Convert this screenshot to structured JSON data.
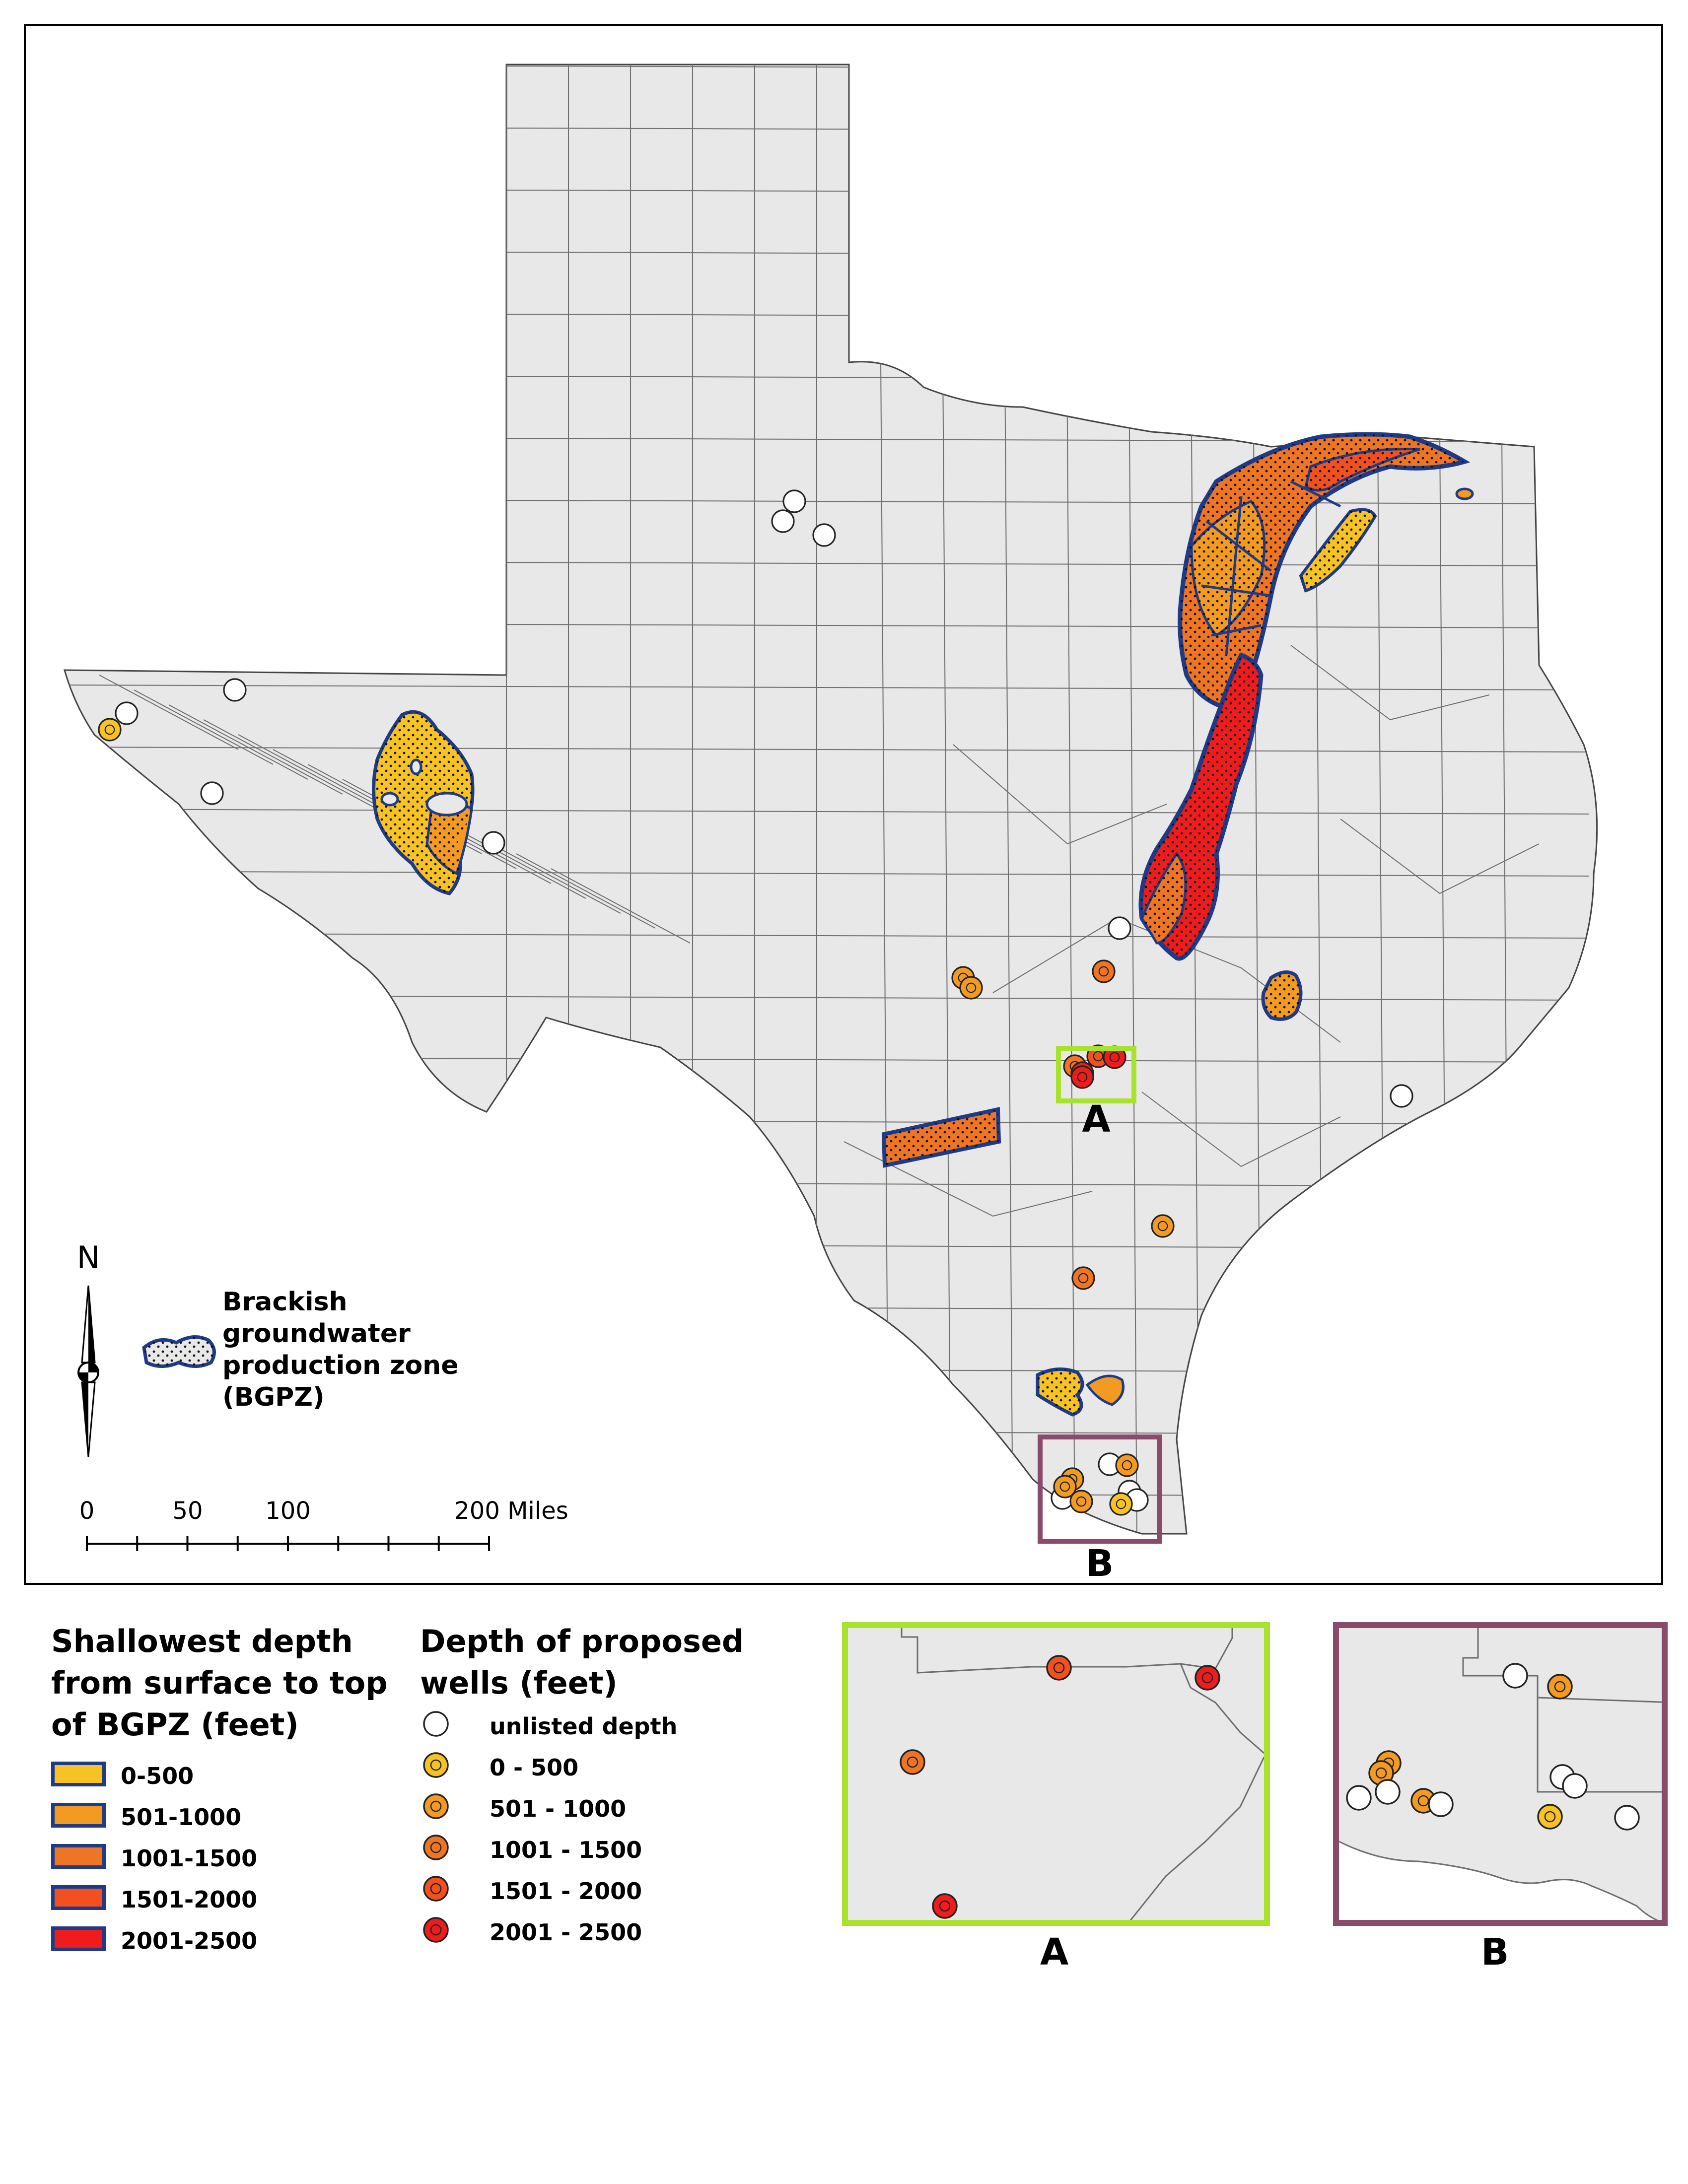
{
  "north_arrow": {
    "label": "N"
  },
  "zone_legend": {
    "label": "Brackish groundwater production zone (BGPZ)"
  },
  "scale_bar": {
    "labels": [
      "0",
      "50",
      "100",
      "200 Miles"
    ]
  },
  "callouts": {
    "a": "A",
    "b": "B"
  },
  "depth_legend": {
    "title": "Shallowest depth from surface to top of BGPZ (feet)",
    "items": [
      {
        "label": "0-500",
        "color": "#f6c224"
      },
      {
        "label": "501-1000",
        "color": "#f29a22"
      },
      {
        "label": "1001-1500",
        "color": "#ee7524"
      },
      {
        "label": "1501-2000",
        "color": "#f2501f"
      },
      {
        "label": "2001-2500",
        "color": "#ee1c1c"
      }
    ]
  },
  "wells_legend": {
    "title": "Depth of proposed wells (feet)",
    "items": [
      {
        "label": "unlisted depth",
        "color": "#ffffff"
      },
      {
        "label": "0 - 500",
        "color": "#f6c224"
      },
      {
        "label": "501 - 1000",
        "color": "#f29a22"
      },
      {
        "label": "1001 - 1500",
        "color": "#ee7524"
      },
      {
        "label": "1501 - 2000",
        "color": "#f2501f"
      },
      {
        "label": "2001 - 2500",
        "color": "#ee1c1c"
      }
    ]
  },
  "inset_a": {
    "label": "A",
    "border_color": "#a6e22e"
  },
  "inset_b": {
    "label": "B",
    "border_color": "#8a4a6a"
  },
  "colors": {
    "state_fill": "#e8e8e8",
    "county_line": "#6e6e6e",
    "zone_outline": "#1f3a86"
  }
}
